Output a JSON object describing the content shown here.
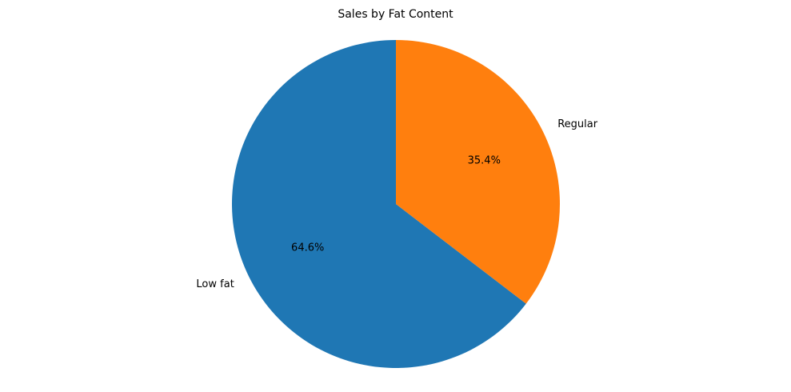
{
  "chart_data": {
    "type": "pie",
    "title": "Sales by Fat Content",
    "start_angle_deg": 90,
    "direction": "counterclockwise",
    "slices": [
      {
        "label": "Low fat",
        "value": 64.6,
        "pct_label": "64.6%",
        "color": "#1f77b4"
      },
      {
        "label": "Regular",
        "value": 35.4,
        "pct_label": "35.4%",
        "color": "#ff7f0e"
      }
    ]
  }
}
